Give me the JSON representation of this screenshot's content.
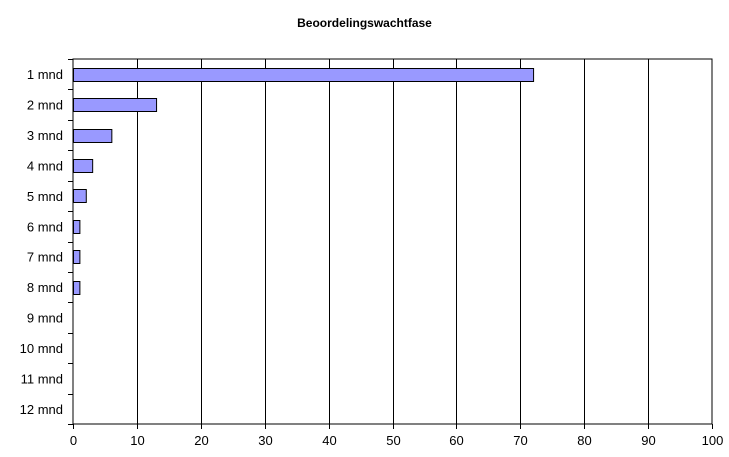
{
  "chart_data": {
    "type": "bar",
    "orientation": "horizontal",
    "title": "Beoordelingswachtfase",
    "xlabel": "",
    "ylabel": "",
    "categories": [
      "1 mnd",
      "2 mnd",
      "3 mnd",
      "4 mnd",
      "5 mnd",
      "6 mnd",
      "7 mnd",
      "8 mnd",
      "9 mnd",
      "10 mnd",
      "11 mnd",
      "12 mnd"
    ],
    "values": [
      72,
      13,
      6,
      3,
      2,
      1,
      1,
      1,
      0,
      0,
      0,
      0
    ],
    "xlim": [
      0,
      100
    ],
    "x_ticks": [
      0,
      10,
      20,
      30,
      40,
      50,
      60,
      70,
      80,
      90,
      100
    ],
    "grid": "vertical",
    "legend": "none",
    "bar_color": "#9999ff",
    "bar_edge_color": "#000000",
    "grid_color": "#000000"
  }
}
